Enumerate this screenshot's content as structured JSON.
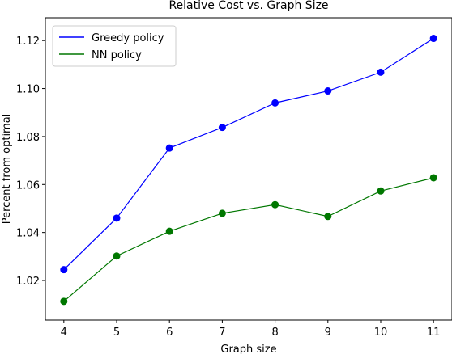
{
  "chart_data": {
    "type": "line",
    "title": "Relative Cost vs. Graph Size",
    "xlabel": "Graph size",
    "ylabel": "Percent from optimal",
    "x": [
      4,
      5,
      6,
      7,
      8,
      9,
      10,
      11
    ],
    "xlim": [
      3.65,
      11.35
    ],
    "ylim": [
      1.0035,
      1.1295
    ],
    "yticks": [
      "1.02",
      "1.04",
      "1.06",
      "1.08",
      "1.10",
      "1.12"
    ],
    "xticks": [
      "4",
      "5",
      "6",
      "7",
      "8",
      "9",
      "10",
      "11"
    ],
    "series": [
      {
        "name": "Greedy policy",
        "color": "#0000ff",
        "values": [
          1.0245,
          1.046,
          1.0752,
          1.0838,
          1.094,
          1.099,
          1.1068,
          1.1209
        ]
      },
      {
        "name": "NN policy",
        "color": "#007700",
        "values": [
          1.0113,
          1.0302,
          1.0405,
          1.048,
          1.0516,
          1.0467,
          1.0573,
          1.0628
        ]
      }
    ],
    "grid": false,
    "legend": "top-left"
  }
}
